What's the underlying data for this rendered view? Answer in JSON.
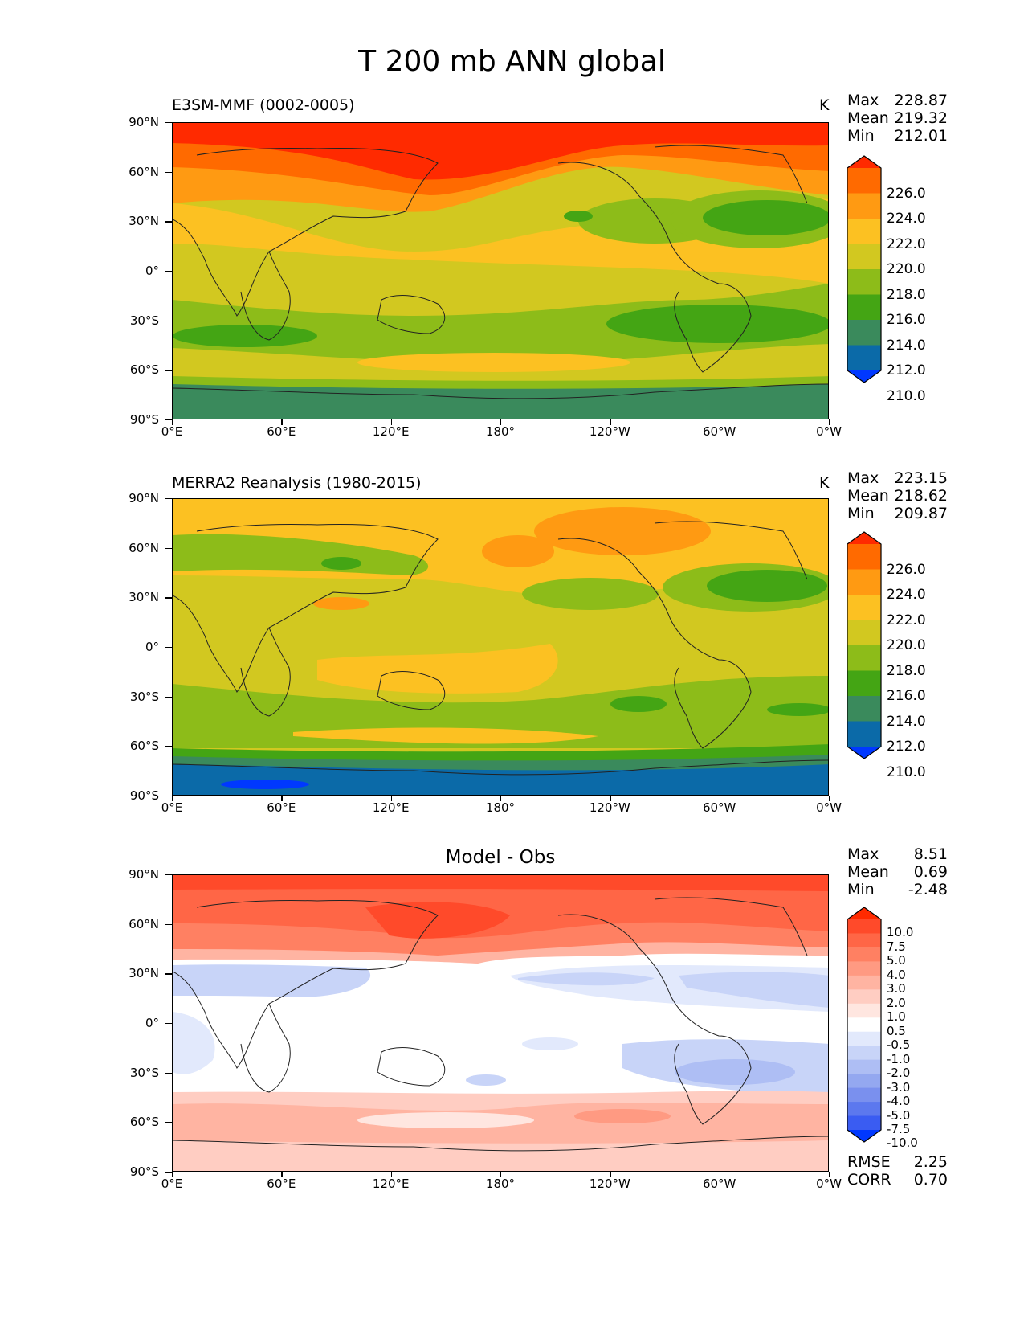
{
  "figure_title": "T 200 mb ANN global",
  "axes": {
    "y_ticks": [
      "90°N",
      "60°N",
      "30°N",
      "0°",
      "30°S",
      "60°S",
      "90°S"
    ],
    "x_ticks": [
      "0°E",
      "60°E",
      "120°E",
      "180°",
      "120°W",
      "60°W",
      "0°W"
    ]
  },
  "chart_data": [
    {
      "type": "heatmap",
      "title": "E3SM-MMF (0002-0005)",
      "units": "K",
      "stats": {
        "max_label": "Max",
        "max": "228.87",
        "mean_label": "Mean",
        "mean": "219.32",
        "min_label": "Min",
        "min": "212.01"
      },
      "levels": [
        "226.0",
        "224.0",
        "222.0",
        "220.0",
        "218.0",
        "216.0",
        "214.0",
        "212.0",
        "210.0"
      ],
      "colors": [
        "#ff2a00",
        "#ff6a00",
        "#ff9a12",
        "#fcc122",
        "#d2c820",
        "#8dbc19",
        "#44a514",
        "#3a8a5c",
        "#0b6aa8",
        "#0038ff"
      ]
    },
    {
      "type": "heatmap",
      "title": "MERRA2 Reanalysis (1980-2015)",
      "units": "K",
      "stats": {
        "max_label": "Max",
        "max": "223.15",
        "mean_label": "Mean",
        "mean": "218.62",
        "min_label": "Min",
        "min": "209.87"
      },
      "levels": [
        "226.0",
        "224.0",
        "222.0",
        "220.0",
        "218.0",
        "216.0",
        "214.0",
        "212.0",
        "210.0"
      ],
      "colors": [
        "#ff2a00",
        "#ff6a00",
        "#ff9a12",
        "#fcc122",
        "#d2c820",
        "#8dbc19",
        "#44a514",
        "#3a8a5c",
        "#0b6aa8",
        "#0038ff"
      ]
    },
    {
      "type": "heatmap",
      "title": "Model - Obs",
      "stats": {
        "max_label": "Max",
        "max": "8.51",
        "mean_label": "Mean",
        "mean": "0.69",
        "min_label": "Min",
        "min": "-2.48"
      },
      "levels": [
        "10.0",
        "7.5",
        "5.0",
        "4.0",
        "3.0",
        "2.0",
        "1.0",
        "0.5",
        "-0.5",
        "-1.0",
        "-2.0",
        "-3.0",
        "-4.0",
        "-5.0",
        "-7.5",
        "-10.0"
      ],
      "colors": [
        "#ff2a00",
        "#ff4a2a",
        "#ff6646",
        "#ff8062",
        "#ff9a82",
        "#ffb4a2",
        "#ffcdc2",
        "#ffe6e0",
        "#ffffff",
        "#e2e9fc",
        "#c8d4f8",
        "#aebef4",
        "#94a8f0",
        "#7a90ee",
        "#5c78ee",
        "#3a5cf2",
        "#0038ff"
      ],
      "rmse_label": "RMSE",
      "rmse": "2.25",
      "corr_label": "CORR",
      "corr": "0.70"
    }
  ]
}
